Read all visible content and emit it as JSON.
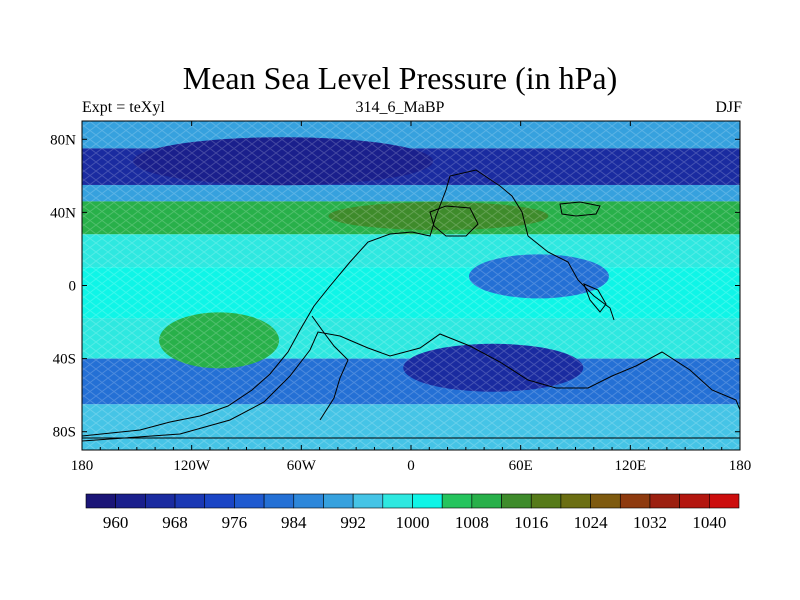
{
  "title": "Mean Sea Level Pressure (in hPa)",
  "subtitle_left": "Expt = teXyl",
  "subtitle_center": "314_6_MaBP",
  "subtitle_right": "DJF",
  "map": {
    "lon_range": [
      -180,
      180
    ],
    "lat_range": [
      -90,
      90
    ],
    "x_ticks": [
      {
        "lon": -180,
        "label": "180"
      },
      {
        "lon": -120,
        "label": "120W"
      },
      {
        "lon": -60,
        "label": "60W"
      },
      {
        "lon": 0,
        "label": "0"
      },
      {
        "lon": 60,
        "label": "60E"
      },
      {
        "lon": 120,
        "label": "120E"
      },
      {
        "lon": 180,
        "label": "180"
      }
    ],
    "y_ticks": [
      {
        "lat": 80,
        "label": "80N"
      },
      {
        "lat": 40,
        "label": "40N"
      },
      {
        "lat": 0,
        "label": "0"
      },
      {
        "lat": -40,
        "label": "40S"
      },
      {
        "lat": -80,
        "label": "80S"
      }
    ],
    "pressure_field": [
      {
        "band": "north-polar",
        "lat": [
          75,
          90
        ],
        "value": 988
      },
      {
        "band": "north-subpolar-low",
        "lat": [
          55,
          75
        ],
        "value": 966
      },
      {
        "band": "north-midlat",
        "lat": [
          46,
          55
        ],
        "value": 990
      },
      {
        "band": "north-subtropical-high",
        "lat": [
          28,
          46
        ],
        "value": 1010
      },
      {
        "band": "north-tropics",
        "lat": [
          10,
          28
        ],
        "value": 998
      },
      {
        "band": "equatorial",
        "lat": [
          -18,
          10
        ],
        "value": 1000
      },
      {
        "band": "south-subtropics",
        "lat": [
          -40,
          -18
        ],
        "value": 998
      },
      {
        "band": "south-midlat-low",
        "lat": [
          -65,
          -40
        ],
        "value": 982
      },
      {
        "band": "south-polar",
        "lat": [
          -90,
          -65
        ],
        "value": 994
      }
    ],
    "pressure_features": [
      {
        "name": "northern-low-center",
        "lon": -70,
        "lat": 68,
        "value": 962
      },
      {
        "name": "northern-high-center",
        "lon": 15,
        "lat": 38,
        "value": 1014
      },
      {
        "name": "south-pacific-high",
        "lon": -105,
        "lat": -30,
        "value": 1010
      },
      {
        "name": "southern-low-center",
        "lon": 45,
        "lat": -45,
        "value": 966
      },
      {
        "name": "tethys-low",
        "lon": 70,
        "lat": 5,
        "value": 982
      }
    ]
  },
  "colorbar": {
    "levels": [
      956,
      960,
      964,
      968,
      972,
      976,
      980,
      984,
      988,
      992,
      996,
      1000,
      1004,
      1008,
      1012,
      1016,
      1020,
      1024,
      1028,
      1032,
      1036,
      1040,
      1044
    ],
    "colors": [
      "#1b1577",
      "#1a1f8c",
      "#1a2ba0",
      "#1a38b4",
      "#1a45c5",
      "#1f5ad0",
      "#2470d5",
      "#2d87da",
      "#36a1de",
      "#45c4e6",
      "#2ee8e0",
      "#0ff5e7",
      "#25c45d",
      "#28b04a",
      "#3e8b2b",
      "#567a19",
      "#6b6e12",
      "#7e5a0f",
      "#8e3a0e",
      "#9c2010",
      "#b3160f",
      "#cc0d0d"
    ],
    "labels": [
      {
        "value": 960,
        "text": "960"
      },
      {
        "value": 968,
        "text": "968"
      },
      {
        "value": 976,
        "text": "976"
      },
      {
        "value": 984,
        "text": "984"
      },
      {
        "value": 992,
        "text": "992"
      },
      {
        "value": 1000,
        "text": "1000"
      },
      {
        "value": 1008,
        "text": "1008"
      },
      {
        "value": 1016,
        "text": "1016"
      },
      {
        "value": 1024,
        "text": "1024"
      },
      {
        "value": 1032,
        "text": "1032"
      },
      {
        "value": 1040,
        "text": "1040"
      }
    ]
  }
}
